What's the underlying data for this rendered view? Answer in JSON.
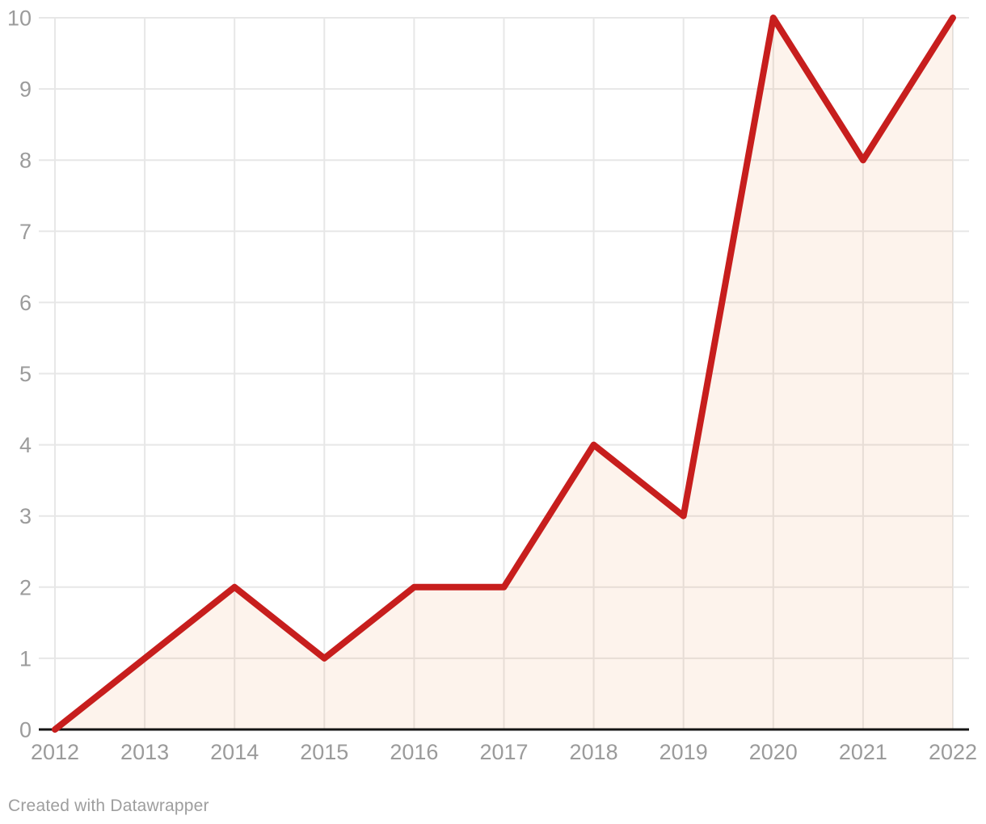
{
  "footer": {
    "credit": "Created with Datawrapper"
  },
  "colors": {
    "line": "#c71e1d",
    "area_fill": "rgba(232,122,46,0.09)",
    "gridline": "#e7e7e7",
    "axis_line": "#141414",
    "tick_label": "#9b9b9b",
    "credit_text": "#9e9e9e",
    "background": "#ffffff"
  },
  "chart_data": {
    "type": "area",
    "categories": [
      "2012",
      "2013",
      "2014",
      "2015",
      "2016",
      "2017",
      "2018",
      "2019",
      "2020",
      "2021",
      "2022"
    ],
    "values": [
      0,
      1,
      2,
      1,
      2,
      2,
      4,
      3,
      10,
      8,
      10
    ],
    "title": "",
    "xlabel": "",
    "ylabel": "",
    "ylim": [
      0,
      10
    ],
    "y_ticks": [
      0,
      1,
      2,
      3,
      4,
      5,
      6,
      7,
      8,
      9,
      10
    ],
    "grid": true,
    "legend": "none"
  }
}
